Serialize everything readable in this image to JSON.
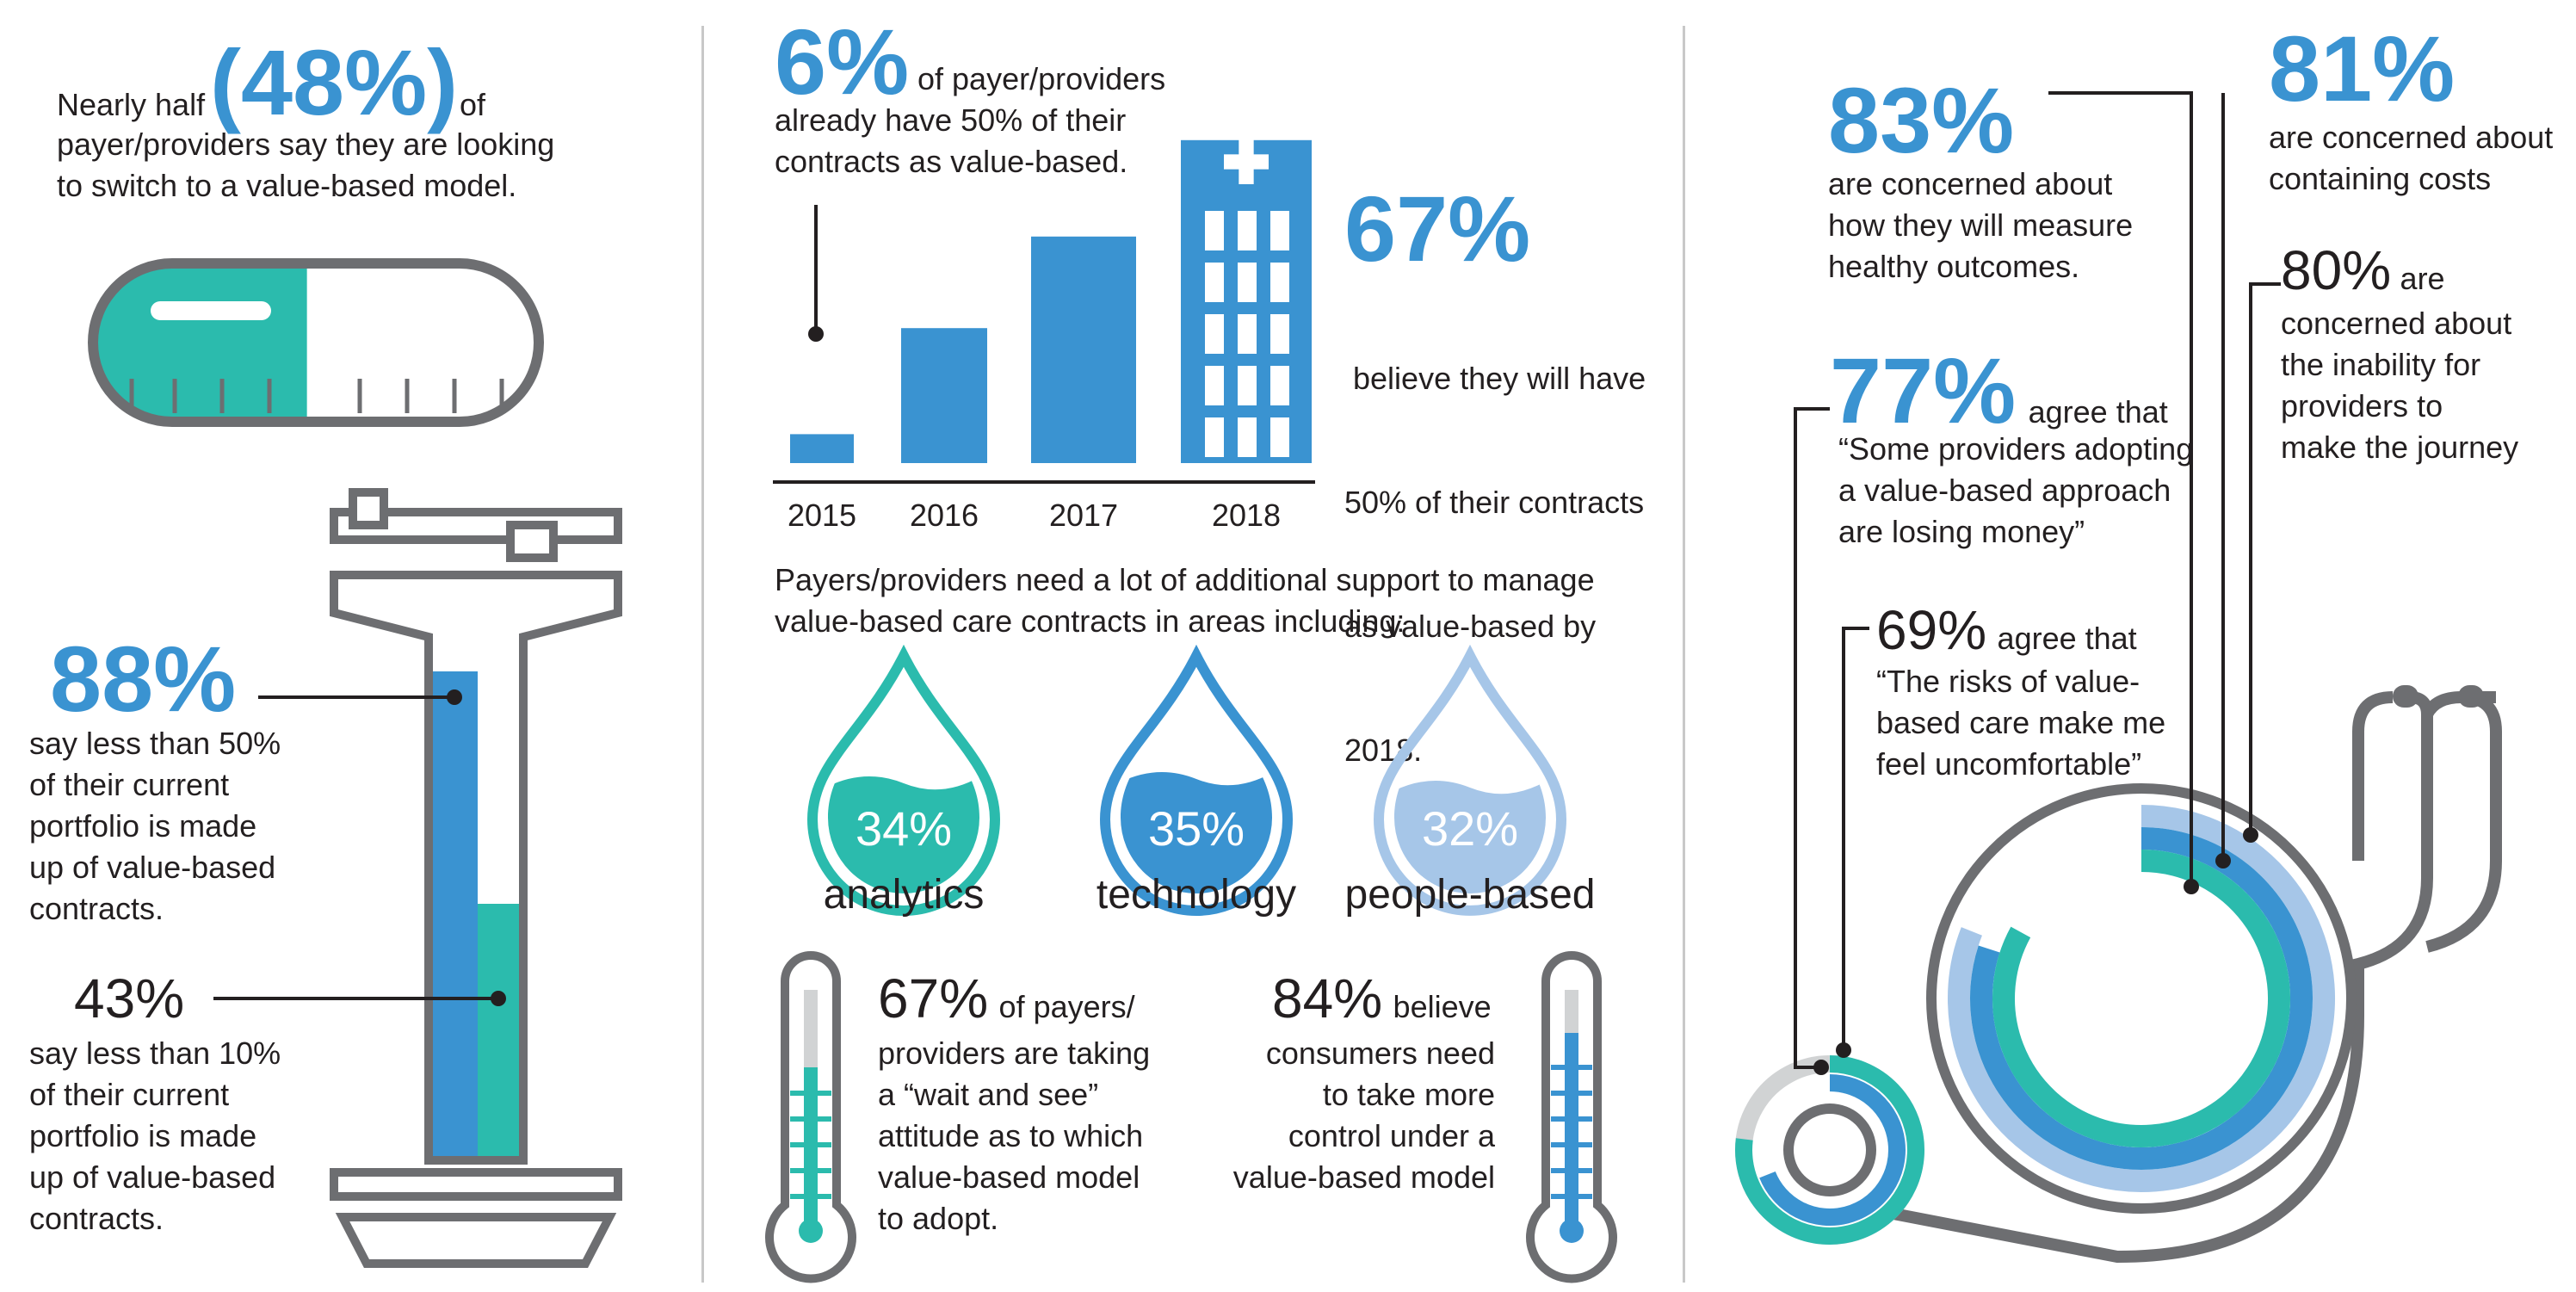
{
  "colors": {
    "blue": "#3a93d1",
    "teal": "#2bbbad",
    "lightblue": "#a6c6e8",
    "gray": "#6d6e71",
    "lightgray": "#d1d3d4"
  },
  "left": {
    "headline_pre": "Nearly half",
    "headline_pct": "(48%)",
    "headline_post": "of",
    "headline_line2": "payer/providers say they are looking",
    "headline_line3": "to switch to a value-based model.",
    "pill_fill_pct": 48,
    "stat1_pct": "88%",
    "stat1_lines": [
      "say less than 50%",
      "of their current",
      "portfolio is made",
      "up of value-based",
      "contracts."
    ],
    "stat2_pct": "43%",
    "stat2_lines": [
      "say less than 10%",
      "of their current",
      "portfolio is made",
      "up of value-based",
      "contracts."
    ]
  },
  "middle": {
    "top_pct": "6%",
    "top_text1": "of payer/providers",
    "top_text2": "already have 50% of their",
    "top_text3": "contracts as value-based.",
    "right_pct": "67%",
    "right_lines": [
      " believe they will have",
      "50% of their contracts",
      "as value-based by",
      "2018."
    ],
    "support_line1": "Payers/providers need a lot of additional support to manage",
    "support_line2": "value-based care contracts in areas including:",
    "thermo1_pct": "67%",
    "thermo1_first": "of payers/",
    "thermo1_lines": [
      "providers are taking",
      "a “wait and see”",
      "attitude as to which",
      "value-based model",
      "to adopt."
    ],
    "thermo2_pct": "84%",
    "thermo2_first": "believe",
    "thermo2_lines": [
      "consumers need",
      "to take more",
      "control under a",
      "value-based model"
    ]
  },
  "chart_data": [
    {
      "type": "bar",
      "categories": [
        "2015",
        "2016",
        "2017",
        "2018"
      ],
      "values": [
        6,
        28,
        47,
        67
      ],
      "ylim": [
        0,
        70
      ]
    },
    {
      "type": "bar",
      "categories": [
        "analytics",
        "technology",
        "people-based"
      ],
      "values": [
        34,
        35,
        32
      ],
      "labels": [
        "34%",
        "35%",
        "32%"
      ]
    }
  ],
  "right": {
    "s83_pct": "83%",
    "s83_lines": [
      "are concerned about",
      "how they will measure",
      "healthy outcomes."
    ],
    "s81_pct": "81%",
    "s81_lines": [
      "are concerned about",
      "containing costs"
    ],
    "s80_pct": "80%",
    "s80_first": "are",
    "s80_lines": [
      "concerned about",
      "the inability for",
      "providers to",
      "make the journey"
    ],
    "s77_pct": "77%",
    "s77_first": "agree that",
    "s77_lines": [
      "“Some providers adopting",
      "a value-based approach",
      "are losing money”"
    ],
    "s69_pct": "69%",
    "s69_first": "agree that",
    "s69_lines": [
      "“The risks of value-",
      "based care make me",
      "feel uncomfortable”"
    ]
  }
}
